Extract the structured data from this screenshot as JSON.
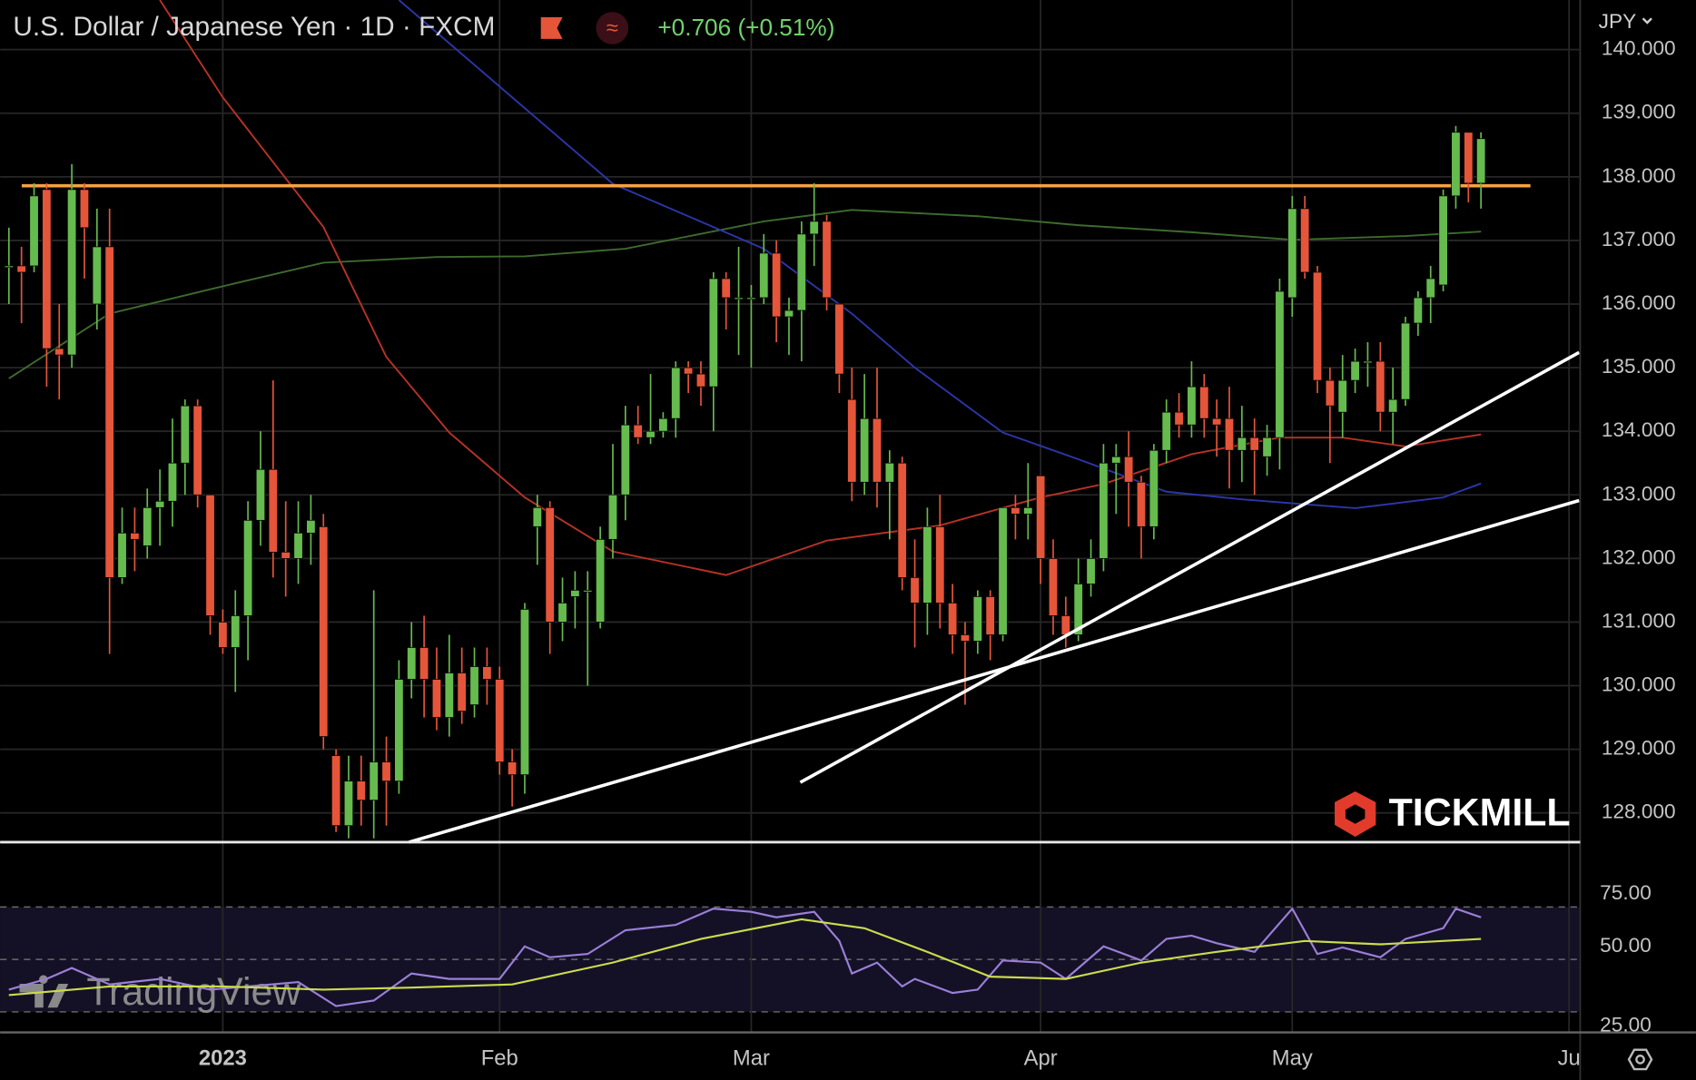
{
  "chart_data": {
    "type": "candlestick",
    "title": "U.S. Dollar / Japanese Yen · 1D · FXCM",
    "change": "+0.706 (+0.51%)",
    "currency": "JPY",
    "watermarks": [
      "TICKMILL",
      "TradingView"
    ],
    "up_color": "#66bb4e",
    "down_color": "#e5553a",
    "grid": true,
    "open": [
      136.6,
      136.6,
      136.6,
      137.8,
      135.3,
      135.2,
      137.8,
      136.0,
      136.9,
      131.7,
      132.4,
      132.2,
      132.8,
      132.9,
      133.5,
      134.4,
      133.0,
      131.0,
      130.6,
      131.1,
      132.6,
      133.4,
      132.1,
      132.0,
      132.4,
      132.5,
      128.9,
      127.8,
      128.5,
      128.2,
      128.8,
      128.5,
      130.1,
      130.6,
      130.1,
      129.5,
      130.2,
      129.7,
      130.3,
      130.1,
      128.8,
      128.6,
      132.5,
      132.8,
      131.0,
      131.4,
      131.5,
      131.0,
      132.3,
      133.0,
      134.1,
      133.9,
      134.0,
      134.2,
      135.0,
      134.9,
      134.7,
      136.4,
      136.1,
      136.1,
      136.1,
      136.8,
      135.8,
      135.9,
      137.1,
      137.3,
      136.0,
      134.5,
      133.2,
      134.2,
      133.2,
      133.5,
      131.7,
      131.3,
      132.5,
      131.3,
      130.8,
      130.7,
      131.4,
      130.8,
      132.8,
      132.7,
      133.3,
      132.0,
      131.1,
      130.8,
      131.6,
      132.0,
      133.5,
      133.6,
      133.2,
      132.5,
      133.7,
      134.3,
      134.1,
      134.7,
      134.2,
      134.2,
      133.7,
      133.9,
      133.6,
      133.9,
      136.1,
      137.5,
      136.5,
      134.8,
      134.3,
      134.8,
      135.1,
      135.1,
      134.3,
      134.5,
      135.7,
      136.1,
      136.3,
      137.7,
      138.7,
      137.9
    ],
    "high": [
      137.2,
      136.9,
      137.9,
      137.9,
      136.0,
      138.2,
      137.9,
      137.5,
      137.5,
      132.8,
      132.8,
      133.1,
      133.4,
      134.2,
      134.5,
      134.5,
      133.0,
      131.2,
      131.5,
      132.9,
      134.0,
      134.8,
      132.9,
      132.9,
      133.0,
      132.7,
      129.0,
      128.9,
      128.9,
      131.5,
      129.2,
      130.4,
      131.0,
      131.1,
      130.6,
      130.8,
      130.6,
      130.6,
      130.6,
      130.3,
      129.0,
      131.3,
      133.0,
      132.9,
      131.7,
      131.8,
      131.8,
      132.5,
      133.8,
      134.4,
      134.4,
      134.9,
      134.3,
      135.1,
      135.1,
      135.1,
      136.5,
      136.5,
      136.9,
      136.3,
      137.1,
      137.0,
      136.1,
      137.3,
      137.9,
      137.4,
      136.0,
      135.0,
      134.9,
      135.0,
      133.7,
      133.6,
      132.3,
      132.8,
      133.0,
      131.6,
      131.0,
      131.5,
      131.5,
      132.8,
      133.0,
      133.5,
      133.3,
      132.3,
      131.4,
      132.0,
      132.3,
      133.8,
      133.8,
      134.0,
      133.3,
      133.8,
      134.5,
      134.6,
      135.1,
      134.9,
      134.5,
      134.7,
      134.4,
      134.2,
      134.1,
      136.4,
      137.7,
      137.7,
      136.6,
      135.0,
      135.2,
      135.3,
      135.4,
      135.4,
      135.0,
      135.8,
      136.2,
      136.6,
      137.8,
      138.8,
      138.7,
      138.7
    ],
    "low": [
      136.0,
      135.7,
      136.5,
      134.7,
      134.5,
      135.0,
      136.4,
      135.6,
      130.5,
      131.6,
      131.8,
      132.0,
      132.2,
      132.5,
      133.0,
      132.8,
      130.8,
      130.5,
      129.9,
      130.4,
      132.2,
      131.7,
      131.4,
      131.6,
      131.9,
      129.0,
      127.7,
      127.6,
      127.8,
      127.6,
      127.8,
      128.3,
      129.8,
      129.5,
      129.3,
      129.2,
      129.4,
      129.5,
      129.7,
      128.6,
      128.1,
      128.3,
      131.9,
      130.5,
      130.7,
      130.9,
      130.0,
      130.9,
      132.0,
      132.6,
      133.8,
      133.8,
      133.9,
      133.9,
      134.6,
      134.4,
      134.0,
      135.6,
      135.2,
      135.0,
      136.0,
      135.4,
      135.2,
      135.1,
      136.6,
      135.9,
      134.6,
      132.9,
      133.0,
      132.8,
      132.3,
      131.5,
      130.6,
      130.8,
      130.9,
      130.5,
      129.7,
      130.5,
      130.4,
      130.7,
      132.3,
      132.3,
      131.6,
      130.8,
      130.6,
      130.7,
      131.4,
      131.8,
      132.7,
      132.5,
      132.0,
      132.3,
      133.5,
      133.9,
      133.9,
      133.9,
      133.6,
      133.1,
      133.2,
      133.0,
      133.3,
      133.4,
      135.8,
      136.4,
      134.6,
      133.5,
      133.9,
      134.6,
      134.7,
      134.0,
      133.8,
      134.4,
      135.5,
      135.7,
      136.2,
      137.5,
      137.6,
      137.5
    ],
    "close": [
      136.6,
      136.5,
      137.7,
      135.3,
      135.2,
      137.8,
      137.2,
      136.9,
      131.7,
      132.4,
      132.3,
      132.8,
      132.9,
      133.5,
      134.4,
      133.0,
      131.1,
      130.6,
      131.1,
      132.6,
      133.4,
      132.1,
      132.0,
      132.4,
      132.6,
      129.2,
      127.8,
      128.5,
      128.2,
      128.8,
      128.5,
      130.1,
      130.6,
      130.1,
      129.5,
      130.2,
      129.6,
      130.3,
      130.1,
      128.8,
      128.6,
      131.2,
      132.8,
      131.0,
      131.3,
      131.5,
      131.5,
      132.3,
      133.0,
      134.1,
      133.9,
      134.0,
      134.2,
      135.0,
      134.9,
      134.7,
      136.4,
      136.1,
      136.1,
      136.1,
      136.8,
      135.8,
      135.9,
      137.1,
      137.3,
      136.1,
      134.9,
      133.2,
      134.2,
      133.2,
      133.5,
      131.7,
      131.3,
      132.5,
      131.3,
      130.8,
      130.7,
      131.4,
      130.8,
      132.8,
      132.7,
      132.8,
      132.0,
      131.1,
      130.8,
      131.6,
      132.0,
      133.5,
      133.6,
      133.2,
      132.5,
      133.7,
      134.3,
      134.1,
      134.7,
      134.2,
      134.1,
      133.7,
      133.9,
      133.7,
      133.9,
      136.2,
      137.5,
      136.5,
      134.8,
      134.4,
      134.8,
      135.1,
      135.1,
      134.3,
      134.5,
      135.7,
      136.1,
      136.4,
      137.7,
      138.7,
      137.9,
      138.6
    ],
    "xlim": [
      -0.7,
      124.8
    ],
    "xticks": [
      {
        "value": 17,
        "label": "2023"
      },
      {
        "value": 39,
        "label": "Feb"
      },
      {
        "value": 59,
        "label": "Mar"
      },
      {
        "value": 82,
        "label": "Apr"
      },
      {
        "value": 102,
        "label": "May"
      },
      {
        "value": 124,
        "label": "Ju"
      }
    ],
    "ylim": [
      127.54,
      140.78
    ],
    "yticks": [
      {
        "value": 128,
        "label": "128.000"
      },
      {
        "value": 129,
        "label": "129.000"
      },
      {
        "value": 130,
        "label": "130.000"
      },
      {
        "value": 131,
        "label": "131.000"
      },
      {
        "value": 132,
        "label": "132.000"
      },
      {
        "value": 133,
        "label": "133.000"
      },
      {
        "value": 134,
        "label": "134.000"
      },
      {
        "value": 135,
        "label": "135.000"
      },
      {
        "value": 136,
        "label": "136.000"
      },
      {
        "value": 137,
        "label": "137.000"
      },
      {
        "value": 138,
        "label": "138.000"
      },
      {
        "value": 139,
        "label": "139.000"
      },
      {
        "value": 140,
        "label": "140.000"
      }
    ],
    "overlays": [
      {
        "color": "#3d6b2e",
        "x": [
          0,
          8,
          17,
          25,
          34,
          41,
          49,
          60,
          67,
          77,
          85,
          94,
          102,
          111,
          117
        ],
        "values": [
          134.83,
          135.85,
          136.28,
          136.65,
          136.74,
          136.75,
          136.87,
          137.3,
          137.48,
          137.38,
          137.24,
          137.13,
          137.01,
          137.07,
          137.14
        ]
      },
      {
        "color": "#b83226",
        "x": [
          12,
          17,
          25,
          30,
          35,
          41,
          48,
          57,
          65,
          74,
          82,
          87,
          94,
          101,
          106,
          111,
          117
        ],
        "values": [
          140.78,
          139.25,
          137.21,
          135.17,
          133.98,
          132.96,
          132.11,
          131.74,
          132.28,
          132.52,
          132.96,
          133.17,
          133.64,
          133.9,
          133.9,
          133.76,
          133.95
        ]
      },
      {
        "color": "#2b36a8",
        "x": [
          31,
          48,
          60,
          67,
          72,
          79,
          85,
          92,
          98,
          107,
          114,
          117
        ],
        "values": [
          140.78,
          137.89,
          136.87,
          135.85,
          135.0,
          133.98,
          133.56,
          133.05,
          132.93,
          132.79,
          132.96,
          133.18
        ]
      }
    ],
    "level": {
      "color": "#f5a142",
      "value": 137.86
    },
    "trendlines": [
      {
        "color": "#ffffff",
        "x": [
          31.8,
          124.8
        ],
        "values": [
          127.54,
          132.91
        ]
      },
      {
        "color": "#ffffff",
        "x": [
          62.9,
          124.8
        ],
        "values": [
          128.48,
          135.24
        ]
      }
    ],
    "rsi": {
      "ylim": [
        15.2,
        105.9
      ],
      "yticks": [
        {
          "value": 75,
          "label": "75.00"
        },
        {
          "value": 50,
          "label": "50.00"
        },
        {
          "value": 25,
          "label": "25.00"
        }
      ],
      "series": [
        {
          "color": "#9b7fd8",
          "x": [
            0,
            3,
            5,
            8,
            12,
            16,
            19,
            23,
            26,
            29,
            32,
            35,
            39,
            41,
            43,
            46,
            49,
            53,
            56,
            59,
            61,
            64,
            66,
            67,
            69,
            71,
            72,
            75,
            77,
            79,
            82,
            84,
            87,
            90,
            92,
            94,
            96,
            99,
            102,
            104,
            106,
            109,
            111,
            114,
            115,
            117
          ],
          "values": [
            35.6,
            40.7,
            45.9,
            38.1,
            40.7,
            35.6,
            37.1,
            39.2,
            27.8,
            30.4,
            43.3,
            40.7,
            40.7,
            56.2,
            51.0,
            52.6,
            63.9,
            66.5,
            74.2,
            72.7,
            70.1,
            72.7,
            58.8,
            43.3,
            48.5,
            37.1,
            40.7,
            34.0,
            35.6,
            49.5,
            48.5,
            40.7,
            56.2,
            49.5,
            59.8,
            61.3,
            57.7,
            53.6,
            74.2,
            52.6,
            55.7,
            51.0,
            59.8,
            64.9,
            74.2,
            70.1
          ]
        },
        {
          "color": "#cbdc4c",
          "x": [
            0,
            8,
            17,
            25,
            32,
            40,
            48,
            55,
            63,
            68,
            73,
            78,
            84,
            90,
            96,
            103,
            109,
            117
          ],
          "values": [
            33.0,
            37.1,
            37.1,
            35.6,
            36.6,
            38.1,
            48.5,
            59.8,
            69.1,
            64.9,
            53.6,
            41.8,
            40.7,
            48.5,
            53.6,
            58.8,
            57.2,
            59.8
          ]
        }
      ]
    }
  }
}
